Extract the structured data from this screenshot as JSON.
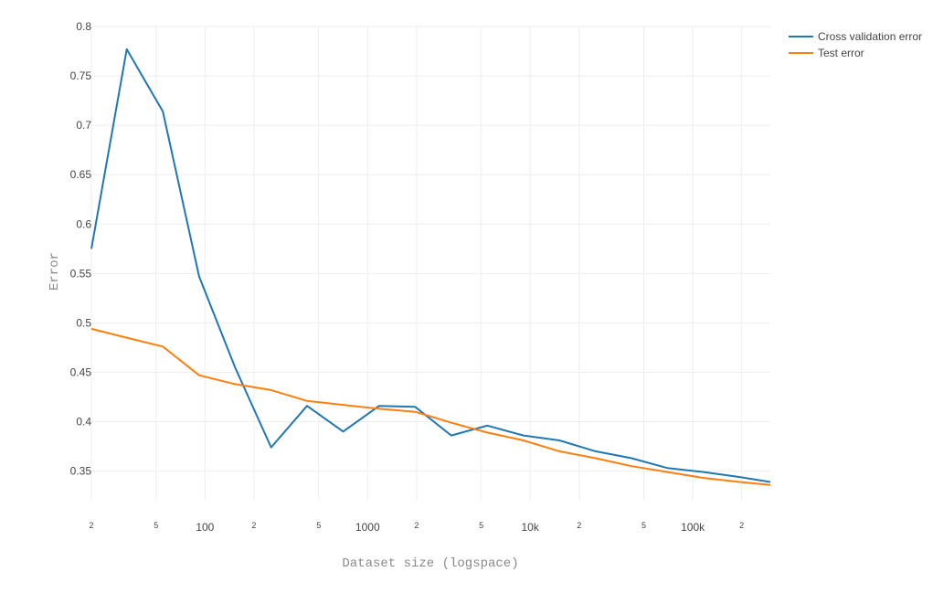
{
  "chart_data": {
    "type": "line",
    "xlabel": "Dataset size (logspace)",
    "ylabel": "Error",
    "x_scale": "log",
    "xlim": [
      20,
      300000
    ],
    "ylim": [
      0.32,
      0.8
    ],
    "grid": true,
    "legend_position": "top-right",
    "y_ticks": [
      0.35,
      0.4,
      0.45,
      0.5,
      0.55,
      0.6,
      0.65,
      0.7,
      0.75,
      0.8
    ],
    "y_tick_labels": [
      "0.35",
      "0.4",
      "0.45",
      "0.5",
      "0.55",
      "0.6",
      "0.65",
      "0.7",
      "0.75",
      "0.8"
    ],
    "x_ticks": [
      20,
      50,
      100,
      200,
      500,
      1000,
      2000,
      5000,
      10000,
      20000,
      50000,
      100000,
      200000
    ],
    "x_tick_labels": [
      "2",
      "5",
      "100",
      "2",
      "5",
      "1000",
      "2",
      "5",
      "10k",
      "2",
      "5",
      "100k",
      "2"
    ],
    "x_tick_major": [
      false,
      false,
      true,
      false,
      false,
      true,
      false,
      false,
      true,
      false,
      false,
      true,
      false
    ],
    "x": [
      20,
      33,
      55,
      92,
      153,
      255,
      424,
      707,
      1178,
      1963,
      3271,
      5452,
      9085,
      15141,
      25233,
      42052,
      70081,
      116794,
      194644,
      300000
    ],
    "series": [
      {
        "name": "Cross validation error",
        "color": "#1f77b4",
        "values": [
          0.575,
          0.777,
          0.714,
          0.547,
          0.455,
          0.374,
          0.416,
          0.39,
          0.416,
          0.415,
          0.386,
          0.396,
          0.386,
          0.381,
          0.37,
          0.363,
          0.353,
          0.349,
          0.344,
          0.339
        ]
      },
      {
        "name": "Test error",
        "color": "#ff7f0e",
        "values": [
          0.494,
          0.485,
          0.476,
          0.447,
          0.438,
          0.432,
          0.421,
          0.417,
          0.413,
          0.41,
          0.399,
          0.389,
          0.381,
          0.37,
          0.363,
          0.355,
          0.349,
          0.343,
          0.339,
          0.336
        ]
      }
    ]
  }
}
